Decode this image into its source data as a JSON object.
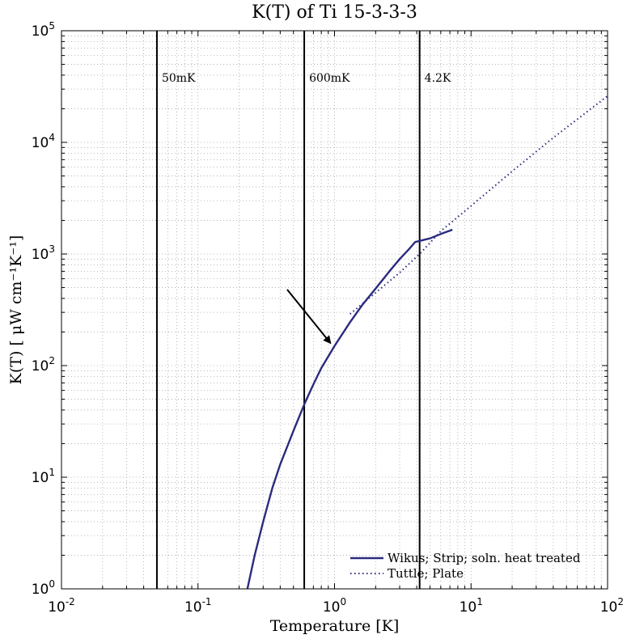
{
  "chart_data": {
    "type": "line",
    "title": "K(T) of Ti 15-3-3-3",
    "xlabel": "Temperature [K]",
    "ylabel": "K(T) [ μW cm⁻¹K⁻¹]",
    "x_scale": "log",
    "y_scale": "log",
    "xlim": [
      0.01,
      100
    ],
    "ylim": [
      1,
      100000
    ],
    "grid": true,
    "x_ticks": [
      {
        "value": 0.01,
        "base": "10",
        "exp": "-2"
      },
      {
        "value": 0.1,
        "base": "10",
        "exp": "-1"
      },
      {
        "value": 1,
        "base": "10",
        "exp": "0"
      },
      {
        "value": 10,
        "base": "10",
        "exp": "1"
      },
      {
        "value": 100,
        "base": "10",
        "exp": "2"
      }
    ],
    "y_ticks": [
      {
        "value": 1,
        "base": "10",
        "exp": "0"
      },
      {
        "value": 10,
        "base": "10",
        "exp": "1"
      },
      {
        "value": 100,
        "base": "10",
        "exp": "2"
      },
      {
        "value": 1000,
        "base": "10",
        "exp": "3"
      },
      {
        "value": 10000,
        "base": "10",
        "exp": "4"
      },
      {
        "value": 100000,
        "base": "10",
        "exp": "5"
      }
    ],
    "vertical_lines": [
      {
        "x": 0.05,
        "label": "50mK"
      },
      {
        "x": 0.6,
        "label": "600mK"
      },
      {
        "x": 4.2,
        "label": "4.2K"
      }
    ],
    "series": [
      {
        "name": "Wikus; Strip; soln. heat treated",
        "style": "solid",
        "color": "#2b2b7f",
        "points": [
          [
            0.23,
            1.0
          ],
          [
            0.26,
            2.0
          ],
          [
            0.3,
            4.0
          ],
          [
            0.35,
            8.0
          ],
          [
            0.4,
            13.0
          ],
          [
            0.5,
            26.0
          ],
          [
            0.6,
            45.0
          ],
          [
            0.7,
            68.0
          ],
          [
            0.8,
            95.0
          ],
          [
            1.0,
            150.0
          ],
          [
            1.3,
            245.0
          ],
          [
            1.6,
            350.0
          ],
          [
            2.0,
            490.0
          ],
          [
            2.5,
            690.0
          ],
          [
            3.0,
            900.0
          ],
          [
            3.5,
            1100.0
          ],
          [
            3.9,
            1280.0
          ],
          [
            5.0,
            1380.0
          ],
          [
            6.0,
            1510.0
          ],
          [
            7.3,
            1650.0
          ]
        ]
      },
      {
        "name": "Tuttle; Plate",
        "style": "dotted",
        "color": "#2b2b7f",
        "points": [
          [
            1.3,
            290.0
          ],
          [
            2.0,
            450.0
          ],
          [
            3.0,
            680.0
          ],
          [
            4.2,
            1000.0
          ],
          [
            6.0,
            1600.0
          ],
          [
            10.0,
            2700.0
          ],
          [
            20.0,
            5500.0
          ],
          [
            40.0,
            11000.0
          ],
          [
            100.0,
            26000.0
          ]
        ]
      }
    ],
    "annotations": [
      {
        "type": "arrow",
        "from": [
          0.45,
          480.0
        ],
        "to": [
          0.93,
          160.0
        ]
      }
    ],
    "legend_position": "bottom-right"
  }
}
